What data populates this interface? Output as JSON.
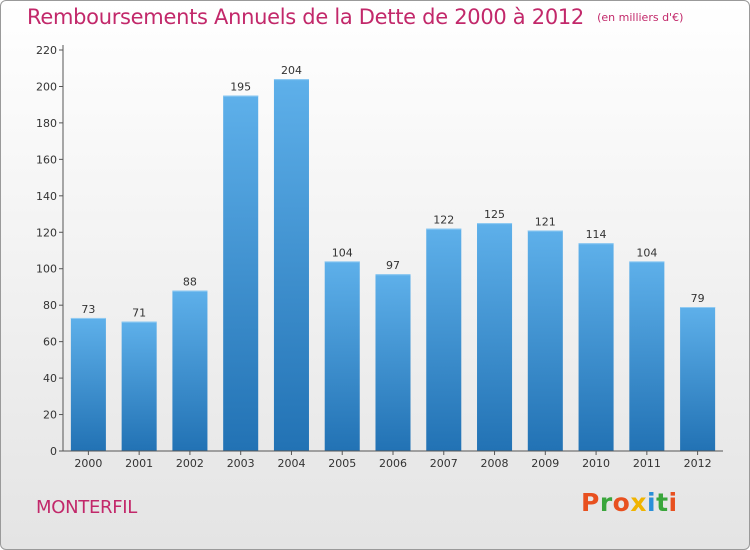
{
  "title": "Remboursements Annuels de la Dette de 2000 à 2012",
  "subtitle": "(en milliers d'€)",
  "commune": "MONTERFIL",
  "logo": {
    "text": "Proxiti",
    "colors": [
      "#e8501f",
      "#3aa63c",
      "#e8501f",
      "#f0b400",
      "#2a8fd8",
      "#3aa63c",
      "#e8501f"
    ]
  },
  "colors": {
    "accent": "#c2286a",
    "bar_top": "#5eb0ea",
    "bar_bottom": "#2272b4"
  },
  "chart_data": {
    "type": "bar",
    "title": "Remboursements Annuels de la Dette de 2000 à 2012",
    "categories": [
      "2000",
      "2001",
      "2002",
      "2003",
      "2004",
      "2005",
      "2006",
      "2007",
      "2008",
      "2009",
      "2010",
      "2011",
      "2012"
    ],
    "values": [
      73,
      71,
      88,
      195,
      204,
      104,
      97,
      122,
      125,
      121,
      114,
      104,
      79
    ],
    "ylim": [
      0,
      220
    ],
    "yticks": [
      0,
      20,
      40,
      60,
      80,
      100,
      120,
      140,
      160,
      180,
      200,
      220
    ],
    "grid": false,
    "legend": "none"
  }
}
